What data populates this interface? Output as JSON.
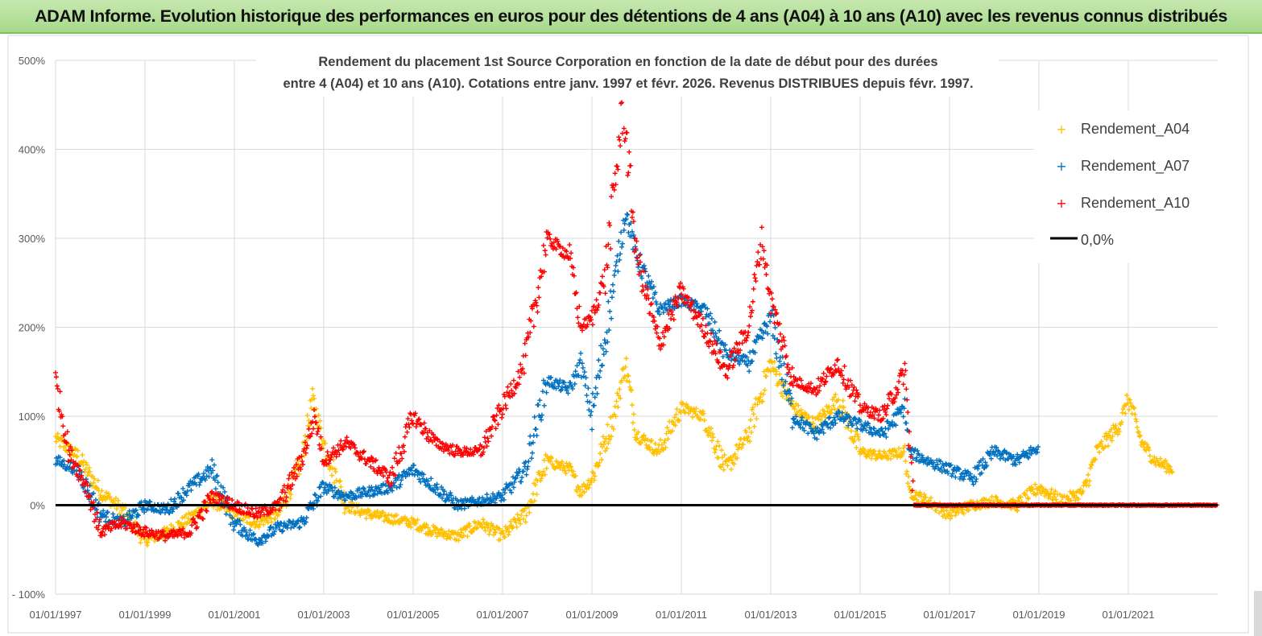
{
  "banner": {
    "title": "ADAM Informe. Evolution historique des performances en euros pour des détentions de 4 ans (A04) à 10 ans (A10) avec les revenus connus distribués"
  },
  "colors": {
    "a04": "#ffc000",
    "a07": "#0070c0",
    "a10": "#ff0000",
    "zero": "#000000",
    "banner_bg": "#b5df9c",
    "grid": "#d9d9d9"
  },
  "chart_data": {
    "type": "scatter",
    "title_lines": [
      "Rendement du placement 1st Source Corporation en fonction de la date de début pour des durées",
      "entre 4 (A04) et 10 ans (A10).  Cotations entre janv. 1997 et févr. 2026. Revenus DISTRIBUES depuis févr. 1997."
    ],
    "xlim": [
      1997.0,
      2023.0
    ],
    "ylim": [
      -100,
      500
    ],
    "x_ticks": [
      1997,
      1999,
      2001,
      2003,
      2005,
      2007,
      2009,
      2011,
      2013,
      2015,
      2017,
      2019,
      2021
    ],
    "x_tick_labels": [
      "01/01/1997",
      "01/01/1999",
      "01/01/2001",
      "01/01/2003",
      "01/01/2005",
      "01/01/2007",
      "01/01/2009",
      "01/01/2011",
      "01/01/2013",
      "01/01/2015",
      "01/01/2017",
      "01/01/2019",
      "01/01/2021"
    ],
    "y_ticks": [
      -100,
      0,
      100,
      200,
      300,
      400,
      500
    ],
    "y_tick_labels": [
      "- 100%",
      "0%",
      "100%",
      "200%",
      "300%",
      "400%",
      "500%"
    ],
    "legend": [
      {
        "name": "Rendement_A04",
        "marker": "+",
        "color": "#ffc000"
      },
      {
        "name": "Rendement_A07",
        "marker": "+",
        "color": "#0070c0"
      },
      {
        "name": "Rendement_A10",
        "marker": "+",
        "color": "#ff0000"
      },
      {
        "name": "0,0%",
        "marker": "line",
        "color": "#000000"
      }
    ],
    "legend_position": "top-right",
    "series": [
      {
        "name": "Rendement_A04",
        "color": "#ffc000",
        "points": [
          [
            1997.0,
            75
          ],
          [
            1997.5,
            55
          ],
          [
            1998.0,
            15
          ],
          [
            1998.5,
            -5
          ],
          [
            1999.0,
            -40
          ],
          [
            1999.5,
            -30
          ],
          [
            2000.0,
            -15
          ],
          [
            2000.5,
            5
          ],
          [
            2001.0,
            -10
          ],
          [
            2001.5,
            -20
          ],
          [
            2002.0,
            -10
          ],
          [
            2002.5,
            50
          ],
          [
            2002.75,
            120
          ],
          [
            2003.0,
            70
          ],
          [
            2003.5,
            0
          ],
          [
            2004.0,
            -10
          ],
          [
            2004.5,
            -15
          ],
          [
            2005.0,
            -20
          ],
          [
            2005.5,
            -30
          ],
          [
            2006.0,
            -35
          ],
          [
            2006.5,
            -20
          ],
          [
            2007.0,
            -35
          ],
          [
            2007.5,
            -10
          ],
          [
            2008.0,
            50
          ],
          [
            2008.5,
            40
          ],
          [
            2008.75,
            15
          ],
          [
            2009.0,
            30
          ],
          [
            2009.5,
            100
          ],
          [
            2009.75,
            160
          ],
          [
            2010.0,
            80
          ],
          [
            2010.5,
            60
          ],
          [
            2011.0,
            110
          ],
          [
            2011.5,
            100
          ],
          [
            2012.0,
            40
          ],
          [
            2012.5,
            80
          ],
          [
            2013.0,
            160
          ],
          [
            2013.5,
            110
          ],
          [
            2014.0,
            90
          ],
          [
            2014.5,
            120
          ],
          [
            2015.0,
            60
          ],
          [
            2015.5,
            55
          ],
          [
            2016.0,
            60
          ],
          [
            2016.1,
            15
          ],
          [
            2016.5,
            5
          ],
          [
            2017.0,
            -10
          ],
          [
            2017.5,
            0
          ],
          [
            2018.0,
            5
          ],
          [
            2018.5,
            0
          ],
          [
            2019.0,
            20
          ],
          [
            2019.5,
            5
          ],
          [
            2020.0,
            15
          ],
          [
            2020.3,
            60
          ],
          [
            2020.8,
            90
          ],
          [
            2021.0,
            120
          ],
          [
            2021.3,
            70
          ],
          [
            2021.6,
            50
          ],
          [
            2022.0,
            40
          ]
        ]
      },
      {
        "name": "Rendement_A07",
        "color": "#0070c0",
        "points": [
          [
            1997.0,
            50
          ],
          [
            1997.5,
            40
          ],
          [
            1998.0,
            -10
          ],
          [
            1998.5,
            -20
          ],
          [
            1999.0,
            0
          ],
          [
            1999.5,
            -5
          ],
          [
            2000.0,
            20
          ],
          [
            2000.5,
            40
          ],
          [
            2001.0,
            -20
          ],
          [
            2001.5,
            -40
          ],
          [
            2002.0,
            -25
          ],
          [
            2002.5,
            -20
          ],
          [
            2003.0,
            20
          ],
          [
            2003.5,
            10
          ],
          [
            2004.0,
            15
          ],
          [
            2004.5,
            20
          ],
          [
            2005.0,
            40
          ],
          [
            2005.5,
            20
          ],
          [
            2006.0,
            0
          ],
          [
            2006.5,
            5
          ],
          [
            2007.0,
            10
          ],
          [
            2007.5,
            40
          ],
          [
            2008.0,
            140
          ],
          [
            2008.5,
            130
          ],
          [
            2008.75,
            160
          ],
          [
            2009.0,
            100
          ],
          [
            2009.5,
            250
          ],
          [
            2009.75,
            330
          ],
          [
            2010.0,
            280
          ],
          [
            2010.5,
            220
          ],
          [
            2011.0,
            230
          ],
          [
            2011.5,
            220
          ],
          [
            2012.0,
            170
          ],
          [
            2012.5,
            160
          ],
          [
            2013.0,
            210
          ],
          [
            2013.5,
            100
          ],
          [
            2014.0,
            80
          ],
          [
            2014.5,
            100
          ],
          [
            2015.0,
            90
          ],
          [
            2015.5,
            80
          ],
          [
            2016.0,
            110
          ],
          [
            2016.1,
            60
          ],
          [
            2016.5,
            50
          ],
          [
            2017.0,
            40
          ],
          [
            2017.5,
            30
          ],
          [
            2018.0,
            60
          ],
          [
            2018.5,
            50
          ],
          [
            2019.0,
            65
          ]
        ]
      },
      {
        "name": "Rendement_A10",
        "color": "#ff0000",
        "points": [
          [
            1997.0,
            140
          ],
          [
            1997.3,
            60
          ],
          [
            1997.7,
            20
          ],
          [
            1998.0,
            -30
          ],
          [
            1998.5,
            -20
          ],
          [
            1999.0,
            -30
          ],
          [
            1999.5,
            -35
          ],
          [
            2000.0,
            -30
          ],
          [
            2000.5,
            10
          ],
          [
            2001.0,
            0
          ],
          [
            2001.5,
            -10
          ],
          [
            2002.0,
            0
          ],
          [
            2002.5,
            50
          ],
          [
            2002.8,
            100
          ],
          [
            2003.0,
            50
          ],
          [
            2003.5,
            70
          ],
          [
            2004.0,
            50
          ],
          [
            2004.5,
            30
          ],
          [
            2005.0,
            100
          ],
          [
            2005.5,
            70
          ],
          [
            2006.0,
            60
          ],
          [
            2006.5,
            60
          ],
          [
            2007.0,
            110
          ],
          [
            2007.5,
            160
          ],
          [
            2008.0,
            300
          ],
          [
            2008.5,
            280
          ],
          [
            2008.75,
            200
          ],
          [
            2009.0,
            210
          ],
          [
            2009.3,
            260
          ],
          [
            2009.7,
            450
          ],
          [
            2010.0,
            280
          ],
          [
            2010.5,
            180
          ],
          [
            2011.0,
            240
          ],
          [
            2011.5,
            200
          ],
          [
            2012.0,
            150
          ],
          [
            2012.5,
            200
          ],
          [
            2012.8,
            300
          ],
          [
            2013.0,
            230
          ],
          [
            2013.5,
            140
          ],
          [
            2014.0,
            130
          ],
          [
            2014.5,
            160
          ],
          [
            2015.0,
            110
          ],
          [
            2015.5,
            100
          ],
          [
            2016.0,
            150
          ],
          [
            2016.2,
            0
          ],
          [
            2017.0,
            0
          ],
          [
            2018.0,
            0
          ],
          [
            2019.0,
            0
          ],
          [
            2020.0,
            0
          ],
          [
            2021.0,
            0
          ],
          [
            2022.0,
            0
          ],
          [
            2023.0,
            0
          ]
        ]
      }
    ]
  }
}
